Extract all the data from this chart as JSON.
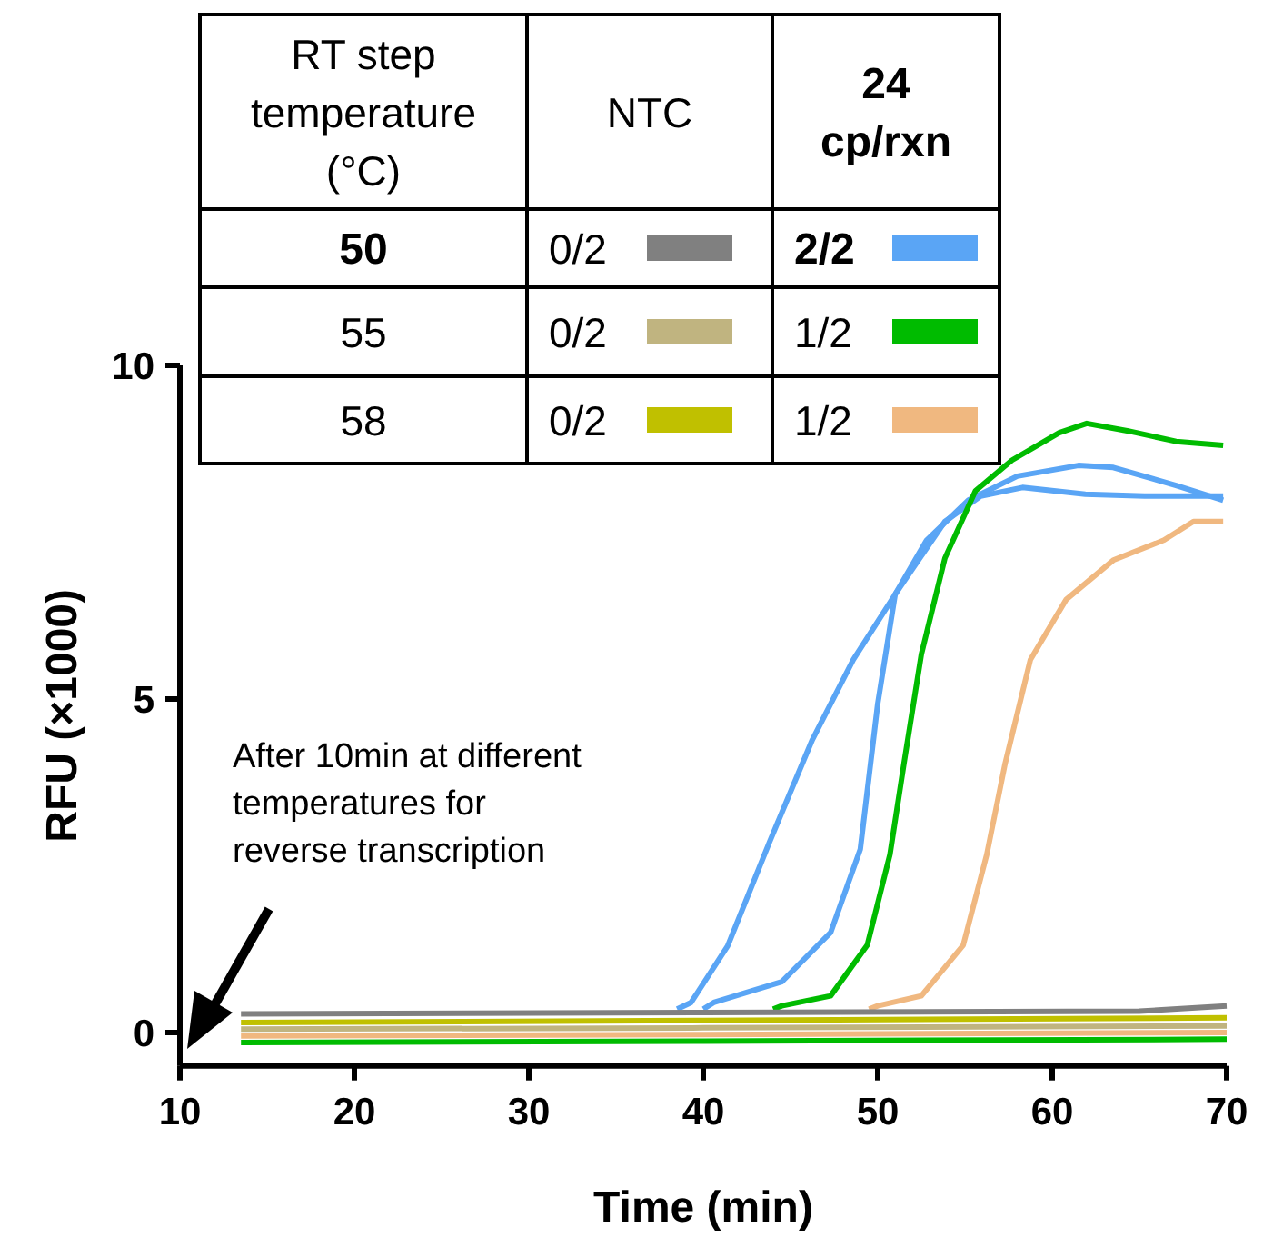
{
  "chart_data": {
    "type": "line",
    "xlabel": "Time (min)",
    "ylabel": "RFU (×1000)",
    "xlim": [
      10,
      70
    ],
    "xticks": [
      10,
      20,
      30,
      40,
      50,
      60,
      70
    ],
    "ylim": [
      -0.5,
      10
    ],
    "yticks": [
      0,
      5,
      10
    ],
    "grid": false,
    "line_style": "solid",
    "marker": "none",
    "annotations": [
      "RT step\ntemperature\n(°C)",
      "NTC",
      "24\ncp/rxn",
      "50",
      "0/2",
      "2/2",
      "55",
      "0/2",
      "1/2",
      "58",
      "0/2",
      "1/2",
      "After 10min at different\ntemperatures for\nreverse transcription"
    ],
    "series": [
      {
        "color": "#5aa5f5",
        "x": [
          38.5,
          39.3,
          41.4,
          43.8,
          46.25,
          48.6,
          51,
          53.85,
          55.9,
          58.3,
          61.9,
          65.3,
          69.8
        ],
        "values": [
          0.35,
          0.45,
          1.3,
          2.86,
          4.39,
          5.59,
          6.57,
          7.66,
          8.04,
          8.17,
          8.07,
          8.04,
          8.04
        ]
      },
      {
        "color": "#5aa5f5",
        "x": [
          40,
          40.6,
          44.5,
          47.3,
          49,
          50,
          51,
          52.8,
          55.2,
          58,
          61.5,
          63.5,
          67.1,
          69.8
        ],
        "values": [
          0.35,
          0.45,
          0.76,
          1.5,
          2.75,
          4.93,
          6.57,
          7.38,
          7.98,
          8.34,
          8.5,
          8.47,
          8.2,
          7.98
        ]
      },
      {
        "color": "#00bb00",
        "x": [
          44,
          44.5,
          47.3,
          49.4,
          50.7,
          51.5,
          52.5,
          53.85,
          55.6,
          57.7,
          60.4,
          61.98,
          64.3,
          67.1,
          69.8
        ],
        "values": [
          0.35,
          0.4,
          0.55,
          1.31,
          2.67,
          4.03,
          5.67,
          7.11,
          8.12,
          8.58,
          8.99,
          9.13,
          9.02,
          8.86,
          8.8
        ]
      },
      {
        "color": "#00bb00",
        "x": [
          13.5,
          40,
          70
        ],
        "values": [
          -0.15,
          -0.13,
          -0.1
        ]
      },
      {
        "color": "#f0b880",
        "x": [
          49.5,
          50,
          52.5,
          54.9,
          56.25,
          57.3,
          58.75,
          60.8,
          63.5,
          66.4,
          68.1,
          69.8
        ],
        "values": [
          0.35,
          0.4,
          0.55,
          1.31,
          2.67,
          4.03,
          5.59,
          6.49,
          7.08,
          7.38,
          7.66,
          7.66
        ]
      },
      {
        "color": "#f0b880",
        "x": [
          13.5,
          40,
          70
        ],
        "values": [
          -0.05,
          -0.03,
          0
        ]
      },
      {
        "color": "#808080",
        "x": [
          13.5,
          40,
          65,
          70
        ],
        "values": [
          0.28,
          0.3,
          0.32,
          0.4
        ]
      },
      {
        "color": "#c0b480",
        "x": [
          13.5,
          40,
          70
        ],
        "values": [
          0.05,
          0.07,
          0.1
        ]
      },
      {
        "color": "#c0c000",
        "x": [
          13.5,
          40,
          70
        ],
        "values": [
          0.15,
          0.18,
          0.22
        ]
      }
    ]
  }
}
